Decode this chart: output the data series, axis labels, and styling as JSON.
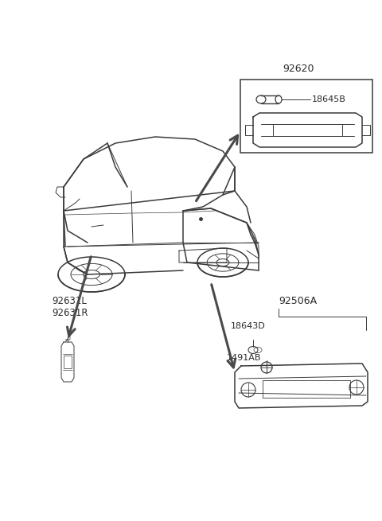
{
  "bg_color": "#ffffff",
  "fig_width": 4.8,
  "fig_height": 6.55,
  "dpi": 100,
  "text_color": "#2a2a2a",
  "line_color": "#3a3a3a",
  "arrow_color": "#4a4a4a",
  "label_92620": "92620",
  "label_18645B": "18645B",
  "label_92631L": "92631L",
  "label_92631R": "92631R",
  "label_92506A": "92506A",
  "label_18643D": "18643D",
  "label_1491AB": "1491AB"
}
